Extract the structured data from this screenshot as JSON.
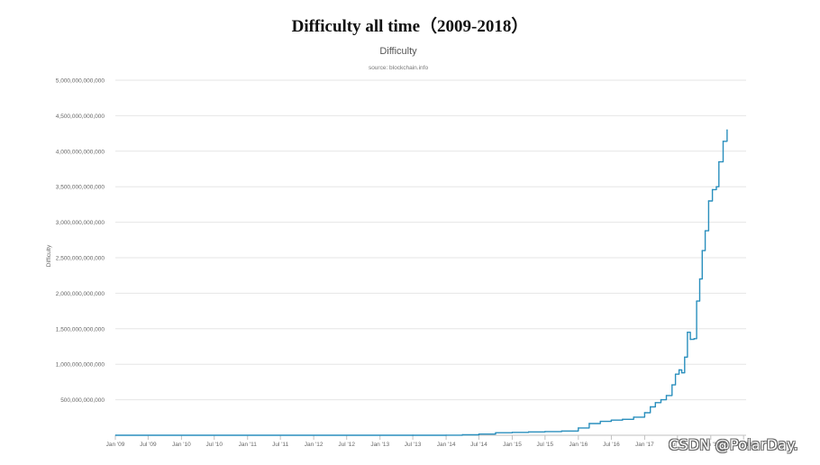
{
  "page_title": "Difficulty all time（2009-2018）",
  "watermark": "CSDN @PolarDay.",
  "colors": {
    "line": "#2a8fbd",
    "grid": "#e6e6e6",
    "axis_text": "#666666",
    "title": "#555555"
  },
  "chart_data": {
    "type": "line",
    "title": "Difficulty",
    "subtitle": "source: blockchain.info",
    "ylabel": "Difficulty",
    "xlabel": "",
    "ylim": [
      0,
      5000000000000
    ],
    "yticks": [
      {
        "value": 500000000000,
        "label": "500,000,000,000"
      },
      {
        "value": 1000000000000,
        "label": "1,000,000,000,000"
      },
      {
        "value": 1500000000000,
        "label": "1,500,000,000,000"
      },
      {
        "value": 2000000000000,
        "label": "2,000,000,000,000"
      },
      {
        "value": 2500000000000,
        "label": "2,500,000,000,000"
      },
      {
        "value": 3000000000000,
        "label": "3,000,000,000,000"
      },
      {
        "value": 3500000000000,
        "label": "3,500,000,000,000"
      },
      {
        "value": 4000000000000,
        "label": "4,000,000,000,000"
      },
      {
        "value": 4500000000000,
        "label": "4,500,000,000,000"
      },
      {
        "value": 5000000000000,
        "label": "5,000,000,000,000"
      }
    ],
    "xlim": [
      "2009-01-01",
      "2018-07-15"
    ],
    "xticks": [
      {
        "date": "2009-01-01",
        "label": "Jan '09"
      },
      {
        "date": "2009-07-01",
        "label": "Jul '09"
      },
      {
        "date": "2010-01-01",
        "label": "Jan '10"
      },
      {
        "date": "2010-07-01",
        "label": "Jul '10"
      },
      {
        "date": "2011-01-01",
        "label": "Jan '11"
      },
      {
        "date": "2011-07-01",
        "label": "Jul '11"
      },
      {
        "date": "2012-01-01",
        "label": "Jan '12"
      },
      {
        "date": "2012-07-01",
        "label": "Jul '12"
      },
      {
        "date": "2013-01-01",
        "label": "Jan '13"
      },
      {
        "date": "2013-07-01",
        "label": "Jul '13"
      },
      {
        "date": "2014-01-01",
        "label": "Jan '14"
      },
      {
        "date": "2014-07-01",
        "label": "Jul '14"
      },
      {
        "date": "2015-01-01",
        "label": "Jan '15"
      },
      {
        "date": "2015-07-01",
        "label": "Jul '15"
      },
      {
        "date": "2016-01-01",
        "label": "Jan '16"
      },
      {
        "date": "2016-07-01",
        "label": "Jul '16"
      },
      {
        "date": "2017-01-01",
        "label": "Jan '17"
      },
      {
        "date": "2017-07-01",
        "label": "Jul '17"
      },
      {
        "date": "2018-01-01",
        "label": "Jan '18"
      },
      {
        "date": "2018-07-01",
        "label": "Jul '18"
      }
    ],
    "grid": true,
    "legend": "none",
    "series": [
      {
        "points": [
          [
            "2009-01-03",
            0
          ],
          [
            "2013-07-01",
            0
          ],
          [
            "2014-01-01",
            1500000000
          ],
          [
            "2014-04-01",
            6000000000
          ],
          [
            "2014-07-01",
            17000000000
          ],
          [
            "2014-10-01",
            35000000000
          ],
          [
            "2015-01-01",
            40000000000
          ],
          [
            "2015-04-01",
            47000000000
          ],
          [
            "2015-07-01",
            52000000000
          ],
          [
            "2015-10-01",
            60000000000
          ],
          [
            "2016-01-01",
            103000000000
          ],
          [
            "2016-03-01",
            165000000000
          ],
          [
            "2016-05-01",
            195000000000
          ],
          [
            "2016-07-01",
            213000000000
          ],
          [
            "2016-09-01",
            225000000000
          ],
          [
            "2016-11-01",
            255000000000
          ],
          [
            "2017-01-01",
            317000000000
          ],
          [
            "2017-02-01",
            400000000000
          ],
          [
            "2017-03-01",
            460000000000
          ],
          [
            "2017-04-01",
            500000000000
          ],
          [
            "2017-05-01",
            560000000000
          ],
          [
            "2017-06-01",
            710000000000
          ],
          [
            "2017-06-20",
            860000000000
          ],
          [
            "2017-07-10",
            920000000000
          ],
          [
            "2017-07-25",
            880000000000
          ],
          [
            "2017-08-10",
            1100000000000
          ],
          [
            "2017-08-25",
            1450000000000
          ],
          [
            "2017-09-10",
            1350000000000
          ],
          [
            "2017-10-01",
            1360000000000
          ],
          [
            "2017-10-15",
            1890000000000
          ],
          [
            "2017-11-01",
            2200000000000
          ],
          [
            "2017-11-15",
            2600000000000
          ],
          [
            "2017-12-01",
            2880000000000
          ],
          [
            "2017-12-20",
            3300000000000
          ],
          [
            "2018-01-10",
            3460000000000
          ],
          [
            "2018-02-01",
            3500000000000
          ],
          [
            "2018-02-15",
            3850000000000
          ],
          [
            "2018-03-10",
            4140000000000
          ],
          [
            "2018-04-01",
            4300000000000
          ]
        ]
      }
    ]
  }
}
